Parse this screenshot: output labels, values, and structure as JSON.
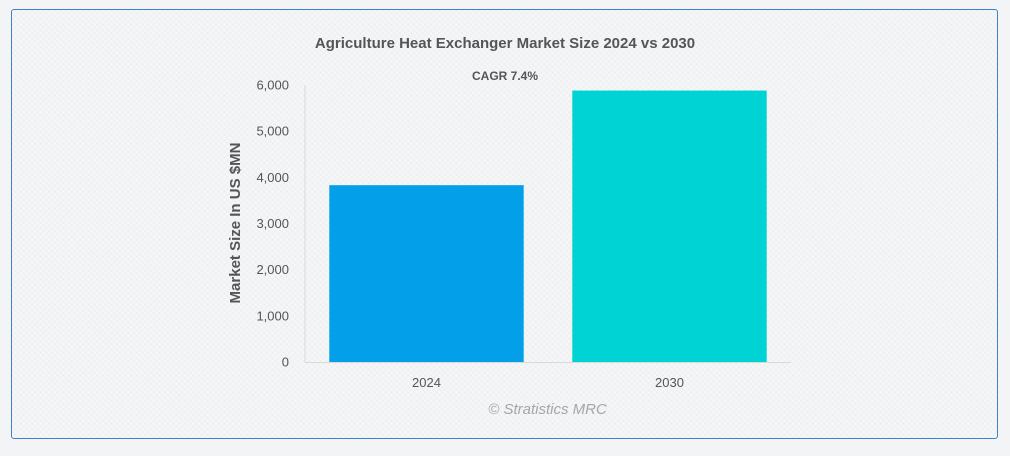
{
  "chart_data": {
    "type": "bar",
    "title": "Agriculture Heat Exchanger Market Size 2024 vs 2030",
    "annotation": "CAGR 7.4%",
    "xlabel": "",
    "ylabel": "Market Size In US $MN",
    "categories": [
      "2024",
      "2030"
    ],
    "values": [
      3830,
      5880
    ],
    "colors": [
      "#049fe9",
      "#00d3d3"
    ],
    "ylim": [
      0,
      6000
    ],
    "yticks": [
      0,
      1000,
      2000,
      3000,
      4000,
      5000,
      6000
    ],
    "ytick_labels": [
      "0",
      "1,000",
      "2,000",
      "3,000",
      "4,000",
      "5,000",
      "6,000"
    ],
    "grid": false,
    "legend": "none",
    "source": "© Stratistics MRC"
  }
}
